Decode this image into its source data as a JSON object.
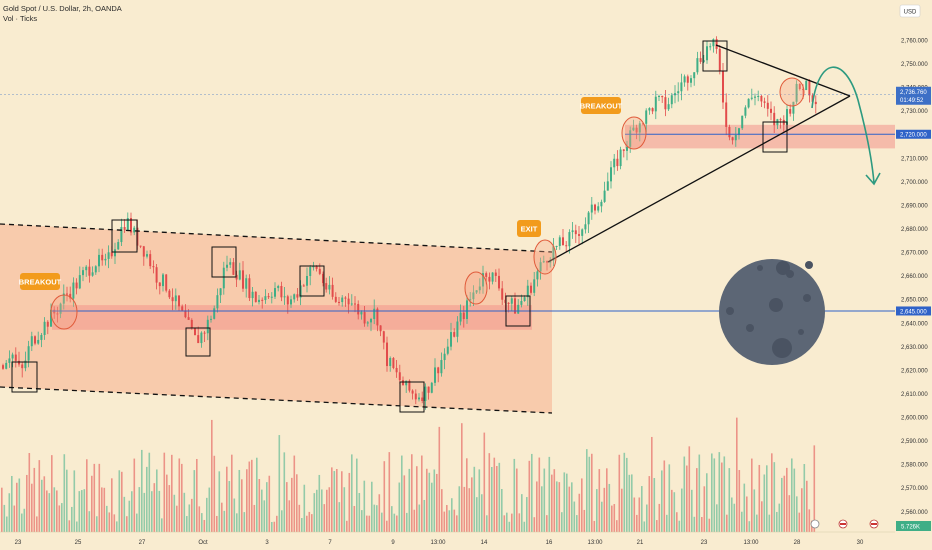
{
  "header": {
    "symbol_line": "Gold Spot / U.S. Dollar, 2h, OANDA",
    "indicator_line": "Vol · Ticks"
  },
  "currency_badge": "USD",
  "price_axis": {
    "ticks": [
      "2,760.000",
      "2,750.000",
      "2,740.000",
      "2,730.000",
      "2,710.000",
      "2,700.000",
      "2,690.000",
      "2,680.000",
      "2,670.000",
      "2,660.000",
      "2,650.000",
      "2,640.000",
      "2,630.000",
      "2,620.000",
      "2,610.000",
      "2,600.000",
      "2,590.000",
      "2,580.000",
      "2,570.000",
      "2,560.000"
    ],
    "tick_values": [
      2760,
      2750,
      2740,
      2730,
      2710,
      2700,
      2690,
      2680,
      2670,
      2660,
      2650,
      2640,
      2630,
      2620,
      2610,
      2600,
      2590,
      2580,
      2570,
      2560
    ],
    "last_price_label": "2,736.760",
    "countdown_label": "01:49:52",
    "level_upper_label": "2,720.000",
    "level_lower_label": "2,645.000",
    "volume_label": "5.726K"
  },
  "time_axis": {
    "labels": [
      "23",
      "25",
      "27",
      "Oct",
      "3",
      "7",
      "9",
      "13:00",
      "14",
      "16",
      "13:00",
      "21",
      "23",
      "13:00",
      "28",
      "30"
    ]
  },
  "annotations": {
    "breakout_left": "BREAKOUT",
    "exit": "EXIT",
    "breakout_right": "BREAKOUT"
  },
  "colors": {
    "background": "#f9ecd0",
    "bull": "#3fae86",
    "bear": "#e24b4b",
    "zone_fill": "#f8b18e",
    "support_line": "#2f62c8",
    "label_bg": "#f29b1c",
    "moon": "#5c6675",
    "arrow": "#2d9a80"
  },
  "chart_data": {
    "type": "candlestick",
    "symbol": "Gold Spot / U.S. Dollar",
    "interval": "2h",
    "ylim": [
      2560,
      2765
    ],
    "support_levels": [
      2645,
      2720
    ],
    "last_price": 2736.76,
    "volume_last": "5.726K",
    "price_path": [
      [
        0,
        2622
      ],
      [
        10,
        2628
      ],
      [
        20,
        2618
      ],
      [
        30,
        2632
      ],
      [
        45,
        2640
      ],
      [
        55,
        2645
      ],
      [
        65,
        2652
      ],
      [
        75,
        2656
      ],
      [
        85,
        2662
      ],
      [
        95,
        2666
      ],
      [
        105,
        2664
      ],
      [
        115,
        2675
      ],
      [
        125,
        2684
      ],
      [
        135,
        2676
      ],
      [
        145,
        2670
      ],
      [
        155,
        2660
      ],
      [
        165,
        2656
      ],
      [
        175,
        2648
      ],
      [
        185,
        2640
      ],
      [
        195,
        2632
      ],
      [
        205,
        2638
      ],
      [
        215,
        2648
      ],
      [
        225,
        2666
      ],
      [
        235,
        2662
      ],
      [
        245,
        2656
      ],
      [
        255,
        2650
      ],
      [
        265,
        2652
      ],
      [
        275,
        2655
      ],
      [
        285,
        2648
      ],
      [
        295,
        2652
      ],
      [
        305,
        2660
      ],
      [
        315,
        2664
      ],
      [
        325,
        2655
      ],
      [
        335,
        2648
      ],
      [
        345,
        2652
      ],
      [
        355,
        2646
      ],
      [
        365,
        2642
      ],
      [
        375,
        2645
      ],
      [
        385,
        2625
      ],
      [
        395,
        2618
      ],
      [
        405,
        2612
      ],
      [
        415,
        2609
      ],
      [
        425,
        2611
      ],
      [
        435,
        2620
      ],
      [
        445,
        2628
      ],
      [
        455,
        2638
      ],
      [
        465,
        2646
      ],
      [
        475,
        2655
      ],
      [
        485,
        2662
      ],
      [
        495,
        2658
      ],
      [
        505,
        2649
      ],
      [
        515,
        2646
      ],
      [
        525,
        2652
      ],
      [
        535,
        2660
      ],
      [
        545,
        2668
      ],
      [
        555,
        2672
      ],
      [
        565,
        2674
      ],
      [
        575,
        2678
      ],
      [
        585,
        2683
      ],
      [
        595,
        2690
      ],
      [
        605,
        2698
      ],
      [
        615,
        2708
      ],
      [
        625,
        2716
      ],
      [
        635,
        2724
      ],
      [
        645,
        2728
      ],
      [
        655,
        2734
      ],
      [
        665,
        2732
      ],
      [
        675,
        2738
      ],
      [
        685,
        2744
      ],
      [
        695,
        2750
      ],
      [
        705,
        2756
      ],
      [
        712,
        2760
      ],
      [
        718,
        2748
      ],
      [
        722,
        2735
      ],
      [
        728,
        2718
      ],
      [
        735,
        2722
      ],
      [
        745,
        2732
      ],
      [
        755,
        2738
      ],
      [
        765,
        2730
      ],
      [
        775,
        2724
      ],
      [
        785,
        2728
      ],
      [
        795,
        2738
      ],
      [
        805,
        2742
      ],
      [
        812,
        2736
      ]
    ]
  }
}
